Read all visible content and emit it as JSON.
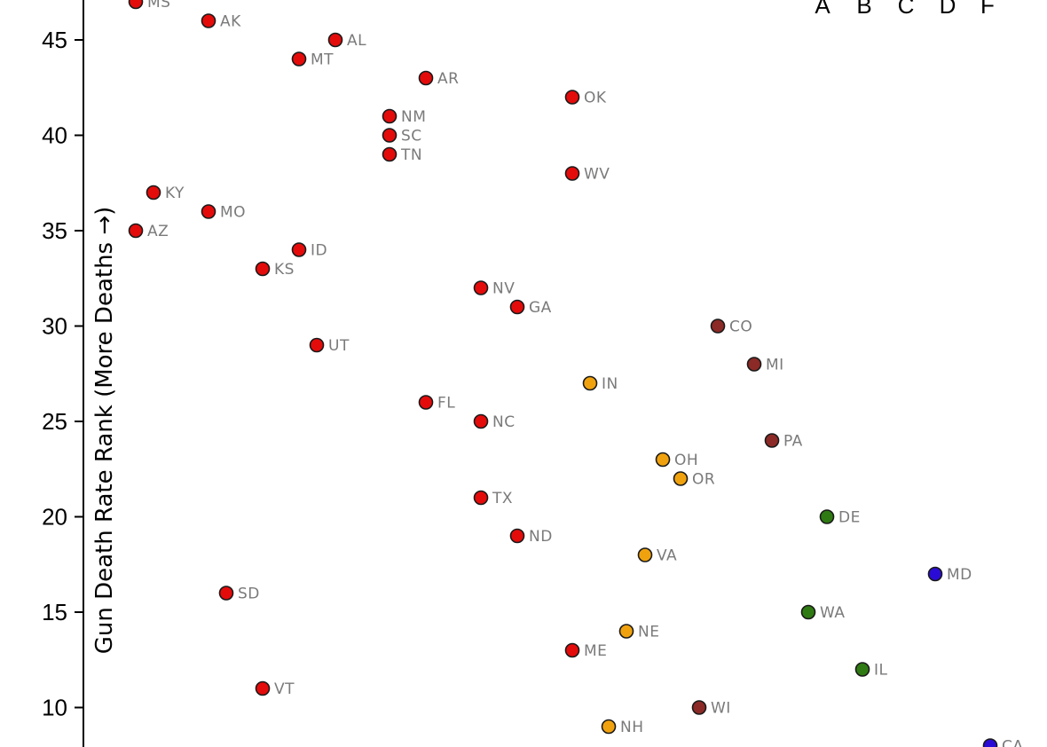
{
  "chart_data": {
    "type": "scatter",
    "ylabel": "Gun Death Rate Rank (More Deaths →)",
    "y_ticks": [
      10,
      15,
      20,
      25,
      30,
      35,
      40,
      45
    ],
    "ylim": [
      8,
      47
    ],
    "grade_legend": [
      "A",
      "B",
      "C",
      "D",
      "F"
    ],
    "grade_colors": {
      "A": "#2a0bd6",
      "B": "#2f7a12",
      "C": "#8b2a26",
      "D": "#f0a20e",
      "F": "#e40b0b"
    },
    "points": [
      {
        "label": "MS",
        "grade": "F",
        "y": 47
      },
      {
        "label": "AK",
        "grade": "F",
        "y": 46
      },
      {
        "label": "AL",
        "grade": "F",
        "y": 45
      },
      {
        "label": "MT",
        "grade": "F",
        "y": 44
      },
      {
        "label": "AR",
        "grade": "F",
        "y": 43
      },
      {
        "label": "OK",
        "grade": "F",
        "y": 42
      },
      {
        "label": "NM",
        "grade": "F",
        "y": 41
      },
      {
        "label": "SC",
        "grade": "F",
        "y": 40
      },
      {
        "label": "TN",
        "grade": "F",
        "y": 39
      },
      {
        "label": "WV",
        "grade": "F",
        "y": 38
      },
      {
        "label": "KY",
        "grade": "F",
        "y": 37
      },
      {
        "label": "MO",
        "grade": "F",
        "y": 36
      },
      {
        "label": "AZ",
        "grade": "F",
        "y": 35
      },
      {
        "label": "ID",
        "grade": "F",
        "y": 34
      },
      {
        "label": "KS",
        "grade": "F",
        "y": 33
      },
      {
        "label": "NV",
        "grade": "F",
        "y": 32
      },
      {
        "label": "GA",
        "grade": "F",
        "y": 31
      },
      {
        "label": "CO",
        "grade": "C",
        "y": 30
      },
      {
        "label": "UT",
        "grade": "F",
        "y": 29
      },
      {
        "label": "MI",
        "grade": "C",
        "y": 28
      },
      {
        "label": "IN",
        "grade": "D",
        "y": 27
      },
      {
        "label": "FL",
        "grade": "F",
        "y": 26
      },
      {
        "label": "NC",
        "grade": "F",
        "y": 25
      },
      {
        "label": "PA",
        "grade": "C",
        "y": 24
      },
      {
        "label": "OH",
        "grade": "D",
        "y": 23
      },
      {
        "label": "OR",
        "grade": "D",
        "y": 22
      },
      {
        "label": "TX",
        "grade": "F",
        "y": 21
      },
      {
        "label": "DE",
        "grade": "B",
        "y": 20
      },
      {
        "label": "ND",
        "grade": "F",
        "y": 19
      },
      {
        "label": "VA",
        "grade": "D",
        "y": 18
      },
      {
        "label": "MD",
        "grade": "A",
        "y": 17
      },
      {
        "label": "SD",
        "grade": "F",
        "y": 16
      },
      {
        "label": "WA",
        "grade": "B",
        "y": 15
      },
      {
        "label": "NE",
        "grade": "D",
        "y": 14
      },
      {
        "label": "ME",
        "grade": "F",
        "y": 13
      },
      {
        "label": "IL",
        "grade": "B",
        "y": 12
      },
      {
        "label": "VT",
        "grade": "F",
        "y": 11
      },
      {
        "label": "WI",
        "grade": "C",
        "y": 10
      },
      {
        "label": "NH",
        "grade": "D",
        "y": 9
      },
      {
        "label": "CA",
        "grade": "A",
        "y": 8
      }
    ]
  }
}
